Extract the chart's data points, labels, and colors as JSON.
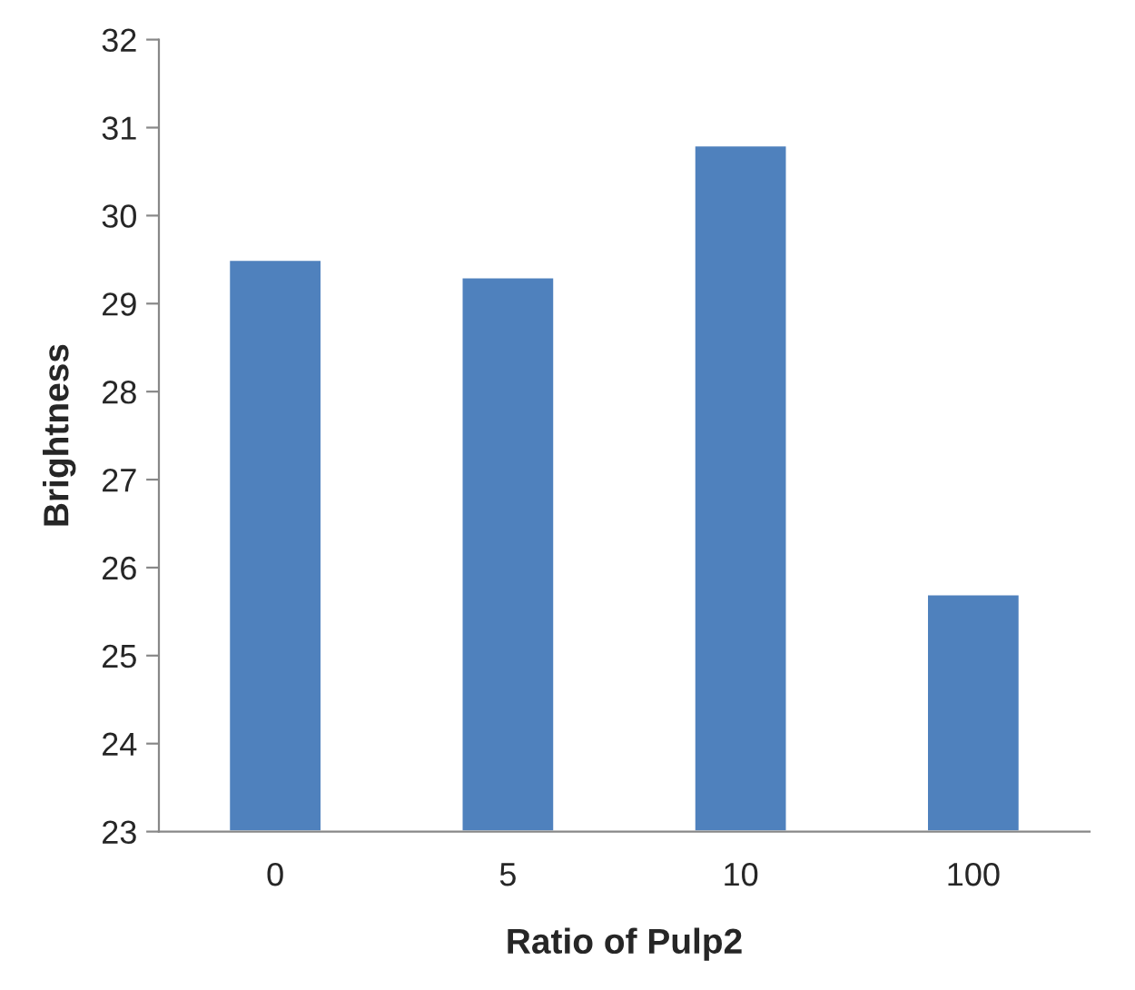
{
  "chart_data": {
    "type": "bar",
    "xlabel": "Ratio of Pulp2",
    "ylabel": "Brightness",
    "categories": [
      "0",
      "5",
      "10",
      "100"
    ],
    "values": [
      29.5,
      29.3,
      30.8,
      25.7
    ],
    "color": "#4f81bd",
    "ylim": [
      23,
      32
    ],
    "yticks": [
      23,
      24,
      25,
      26,
      27,
      28,
      29,
      30,
      31,
      32
    ],
    "grid": false,
    "legend": false
  }
}
